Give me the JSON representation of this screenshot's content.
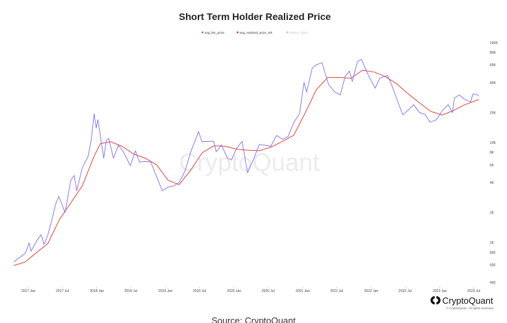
{
  "brand": {
    "name": "CryptoQuant",
    "rights": "© CryptoQuant. All rights reserved.",
    "watermark": "CryptoQuant"
  },
  "source_caption": "Source: CryptoQuant",
  "colors": {
    "price": "#7b6cf0",
    "realized": "#e0433a",
    "muted": "#c8c8c8",
    "brand": "#111111"
  },
  "chart_data": {
    "type": "line",
    "title": "Short Term Holder Realized Price",
    "yscale": "log",
    "ylim": [
      400,
      100000
    ],
    "xlim": [
      "2016-10-15",
      "2023-08-15"
    ],
    "legend_position": "top-center",
    "grid": false,
    "x_ticks": [
      {
        "date": "2017-01-01",
        "label": "2017 Jan"
      },
      {
        "date": "2017-07-01",
        "label": "2017 Jul"
      },
      {
        "date": "2018-01-01",
        "label": "2018 Jan"
      },
      {
        "date": "2018-07-01",
        "label": "2018 Jul"
      },
      {
        "date": "2019-01-01",
        "label": "2019 Jan"
      },
      {
        "date": "2019-07-01",
        "label": "2019 Jul"
      },
      {
        "date": "2020-01-01",
        "label": "2020 Jan"
      },
      {
        "date": "2020-07-01",
        "label": "2020 Jul"
      },
      {
        "date": "2021-01-01",
        "label": "2021 Jan"
      },
      {
        "date": "2021-07-01",
        "label": "2021 Jul"
      },
      {
        "date": "2022-01-01",
        "label": "2022 Jan"
      },
      {
        "date": "2022-07-01",
        "label": "2022 Jul"
      },
      {
        "date": "2023-01-01",
        "label": "2023 Jan"
      },
      {
        "date": "2023-07-01",
        "label": "2023 Jul"
      }
    ],
    "y_ticks": [
      {
        "value": 100000,
        "label": "100K"
      },
      {
        "value": 80000,
        "label": "80K"
      },
      {
        "value": 60000,
        "label": "60K"
      },
      {
        "value": 40000,
        "label": "40K"
      },
      {
        "value": 20000,
        "label": "20K"
      },
      {
        "value": 10000,
        "label": "10K"
      },
      {
        "value": 8000,
        "label": "8K"
      },
      {
        "value": 6000,
        "label": "6K"
      },
      {
        "value": 4000,
        "label": "4K"
      },
      {
        "value": 2000,
        "label": "2K"
      },
      {
        "value": 1000,
        "label": "1K"
      },
      {
        "value": 800,
        "label": "800"
      },
      {
        "value": 600,
        "label": "600"
      },
      {
        "value": 400,
        "label": "400"
      }
    ],
    "series": [
      {
        "name": "avg_btc_price",
        "color": "#7b6cf0",
        "points": [
          [
            "2016-10-15",
            640
          ],
          [
            "2016-11-15",
            710
          ],
          [
            "2016-12-15",
            780
          ],
          [
            "2017-01-05",
            990
          ],
          [
            "2017-01-15",
            820
          ],
          [
            "2017-02-15",
            1050
          ],
          [
            "2017-03-10",
            1200
          ],
          [
            "2017-03-25",
            960
          ],
          [
            "2017-04-15",
            1200
          ],
          [
            "2017-05-10",
            1800
          ],
          [
            "2017-05-25",
            2400
          ],
          [
            "2017-06-12",
            2900
          ],
          [
            "2017-07-15",
            2000
          ],
          [
            "2017-08-15",
            4200
          ],
          [
            "2017-09-02",
            4700
          ],
          [
            "2017-09-15",
            3300
          ],
          [
            "2017-10-15",
            5600
          ],
          [
            "2017-11-15",
            7300
          ],
          [
            "2017-12-01",
            10500
          ],
          [
            "2017-12-17",
            19500
          ],
          [
            "2017-12-28",
            14000
          ],
          [
            "2018-01-06",
            17000
          ],
          [
            "2018-01-20",
            11500
          ],
          [
            "2018-02-06",
            7000
          ],
          [
            "2018-02-20",
            10500
          ],
          [
            "2018-03-05",
            11000
          ],
          [
            "2018-03-30",
            7000
          ],
          [
            "2018-04-25",
            9400
          ],
          [
            "2018-05-20",
            8200
          ],
          [
            "2018-06-28",
            5900
          ],
          [
            "2018-07-25",
            8300
          ],
          [
            "2018-08-15",
            6400
          ],
          [
            "2018-09-15",
            6500
          ],
          [
            "2018-10-15",
            6400
          ],
          [
            "2018-11-20",
            4300
          ],
          [
            "2018-12-15",
            3300
          ],
          [
            "2019-01-15",
            3600
          ],
          [
            "2019-02-15",
            3700
          ],
          [
            "2019-03-15",
            4000
          ],
          [
            "2019-04-15",
            5200
          ],
          [
            "2019-05-15",
            8000
          ],
          [
            "2019-06-26",
            12900
          ],
          [
            "2019-07-15",
            10200
          ],
          [
            "2019-08-15",
            10300
          ],
          [
            "2019-09-15",
            10300
          ],
          [
            "2019-09-28",
            8100
          ],
          [
            "2019-10-26",
            9500
          ],
          [
            "2019-11-25",
            7100
          ],
          [
            "2019-12-18",
            6700
          ],
          [
            "2020-01-15",
            8800
          ],
          [
            "2020-02-13",
            10300
          ],
          [
            "2020-03-13",
            5000
          ],
          [
            "2020-04-15",
            6900
          ],
          [
            "2020-05-15",
            9600
          ],
          [
            "2020-06-15",
            9400
          ],
          [
            "2020-07-15",
            9200
          ],
          [
            "2020-08-15",
            11800
          ],
          [
            "2020-09-15",
            10800
          ],
          [
            "2020-10-15",
            11500
          ],
          [
            "2020-11-15",
            16000
          ],
          [
            "2020-12-15",
            19500
          ],
          [
            "2021-01-08",
            40000
          ],
          [
            "2021-01-22",
            32000
          ],
          [
            "2021-02-21",
            56000
          ],
          [
            "2021-03-13",
            60000
          ],
          [
            "2021-04-14",
            63000
          ],
          [
            "2021-05-19",
            38000
          ],
          [
            "2021-06-22",
            32000
          ],
          [
            "2021-07-20",
            30000
          ],
          [
            "2021-08-15",
            46000
          ],
          [
            "2021-09-07",
            52000
          ],
          [
            "2021-09-22",
            41000
          ],
          [
            "2021-10-20",
            65000
          ],
          [
            "2021-11-10",
            68000
          ],
          [
            "2021-11-28",
            57000
          ],
          [
            "2021-12-15",
            48000
          ],
          [
            "2022-01-22",
            35000
          ],
          [
            "2022-02-15",
            44000
          ],
          [
            "2022-03-28",
            47000
          ],
          [
            "2022-04-15",
            40000
          ],
          [
            "2022-05-12",
            29000
          ],
          [
            "2022-06-18",
            19000
          ],
          [
            "2022-07-15",
            21000
          ],
          [
            "2022-08-15",
            24000
          ],
          [
            "2022-09-15",
            20000
          ],
          [
            "2022-10-15",
            19200
          ],
          [
            "2022-11-10",
            16000
          ],
          [
            "2022-12-15",
            17000
          ],
          [
            "2023-01-15",
            21000
          ],
          [
            "2023-02-15",
            24000
          ],
          [
            "2023-03-10",
            20000
          ],
          [
            "2023-03-20",
            28000
          ],
          [
            "2023-04-15",
            30000
          ],
          [
            "2023-05-15",
            27000
          ],
          [
            "2023-06-15",
            25500
          ],
          [
            "2023-06-25",
            30500
          ],
          [
            "2023-07-15",
            30500
          ],
          [
            "2023-07-28",
            29300
          ]
        ]
      },
      {
        "name": "avg_realized_price_sth",
        "color": "#e0433a",
        "points": [
          [
            "2016-10-15",
            590
          ],
          [
            "2016-12-15",
            640
          ],
          [
            "2017-02-15",
            800
          ],
          [
            "2017-04-15",
            980
          ],
          [
            "2017-06-15",
            1700
          ],
          [
            "2017-08-15",
            2500
          ],
          [
            "2017-10-15",
            3700
          ],
          [
            "2017-12-15",
            7200
          ],
          [
            "2018-01-20",
            9800
          ],
          [
            "2018-03-15",
            10200
          ],
          [
            "2018-05-15",
            9200
          ],
          [
            "2018-07-15",
            7700
          ],
          [
            "2018-09-15",
            7000
          ],
          [
            "2018-11-15",
            6000
          ],
          [
            "2019-01-15",
            4200
          ],
          [
            "2019-03-15",
            3800
          ],
          [
            "2019-05-15",
            5300
          ],
          [
            "2019-07-15",
            7900
          ],
          [
            "2019-09-15",
            9300
          ],
          [
            "2019-11-15",
            9200
          ],
          [
            "2020-01-15",
            8600
          ],
          [
            "2020-03-15",
            8400
          ],
          [
            "2020-05-15",
            8300
          ],
          [
            "2020-07-15",
            9000
          ],
          [
            "2020-09-15",
            10300
          ],
          [
            "2020-11-15",
            11900
          ],
          [
            "2021-01-15",
            20000
          ],
          [
            "2021-03-15",
            34000
          ],
          [
            "2021-05-15",
            45000
          ],
          [
            "2021-07-15",
            45000
          ],
          [
            "2021-09-15",
            44000
          ],
          [
            "2021-11-15",
            53000
          ],
          [
            "2022-01-15",
            51000
          ],
          [
            "2022-03-15",
            46000
          ],
          [
            "2022-05-15",
            39000
          ],
          [
            "2022-07-15",
            31000
          ],
          [
            "2022-09-15",
            25000
          ],
          [
            "2022-11-15",
            20500
          ],
          [
            "2023-01-15",
            18900
          ],
          [
            "2023-03-15",
            21000
          ],
          [
            "2023-05-15",
            24000
          ],
          [
            "2023-07-28",
            27000
          ]
        ]
      },
      {
        "name": "Market_DDD",
        "color": "#c8c8c8",
        "points": []
      }
    ]
  }
}
